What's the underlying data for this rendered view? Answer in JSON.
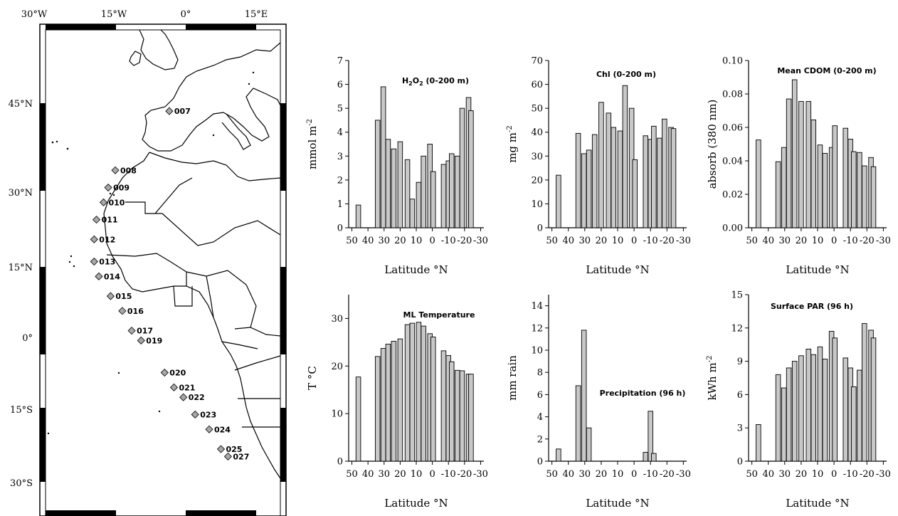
{
  "colors": {
    "bar_fill": "#c8c8c8",
    "bar_stroke": "#000000",
    "station_fill": "#a8a8a8",
    "axis": "#000000"
  },
  "map": {
    "lon_labels": [
      "30°W",
      "15°W",
      "0°",
      "15°E"
    ],
    "lat_labels": [
      "45°N",
      "30°N",
      "15°N",
      "0°",
      "15°S",
      "30°S"
    ],
    "stations": [
      {
        "id": "007",
        "lon": -3.5,
        "lat": 46
      },
      {
        "id": "008",
        "lon": -15,
        "lat": 34
      },
      {
        "id": "009",
        "lon": -16.5,
        "lat": 30.5
      },
      {
        "id": "010",
        "lon": -17.5,
        "lat": 27.5
      },
      {
        "id": "011",
        "lon": -19,
        "lat": 24
      },
      {
        "id": "012",
        "lon": -19.5,
        "lat": 20
      },
      {
        "id": "013",
        "lon": -19.5,
        "lat": 15.5
      },
      {
        "id": "014",
        "lon": -18.5,
        "lat": 12.5
      },
      {
        "id": "015",
        "lon": -16,
        "lat": 8.5
      },
      {
        "id": "016",
        "lon": -13.5,
        "lat": 5.5
      },
      {
        "id": "017",
        "lon": -11.5,
        "lat": 1.5
      },
      {
        "id": "019",
        "lon": -9.5,
        "lat": -0.5
      },
      {
        "id": "020",
        "lon": -4.5,
        "lat": -7
      },
      {
        "id": "021",
        "lon": -2.5,
        "lat": -10
      },
      {
        "id": "022",
        "lon": -0.5,
        "lat": -12
      },
      {
        "id": "023",
        "lon": 2,
        "lat": -15.5
      },
      {
        "id": "024",
        "lon": 5,
        "lat": -18.5
      },
      {
        "id": "025",
        "lon": 7.5,
        "lat": -22.5
      },
      {
        "id": "027",
        "lon": 9,
        "lat": -24
      }
    ]
  },
  "chart_data": [
    {
      "type": "bar",
      "title_main": "H",
      "title_sub": "2",
      "title_mid": "O",
      "title_sub2": "2",
      "title_rest": " (0-200 m)",
      "ylabel_main": "mmol m",
      "ylabel_sup": "-2",
      "xlabel": "Latitude °N",
      "x_ticks": [
        "50",
        "40",
        "30",
        "20",
        "10",
        "0",
        "-10",
        "-20",
        "-30"
      ],
      "y_ticks": [
        "0",
        "1",
        "2",
        "3",
        "4",
        "5",
        "6",
        "7"
      ],
      "ylim": [
        0,
        7
      ],
      "xlim": [
        52,
        -32
      ],
      "x": [
        46,
        34,
        30.5,
        27.5,
        24,
        20,
        15.5,
        12.5,
        8.5,
        5.5,
        1.5,
        -0.5,
        -7,
        -10,
        -12,
        -15.5,
        -18.5,
        -22.5,
        -24
      ],
      "values": [
        0.95,
        4.5,
        5.9,
        3.7,
        3.3,
        3.6,
        2.85,
        1.2,
        1.9,
        3.0,
        3.5,
        2.35,
        2.65,
        2.8,
        3.1,
        3.0,
        5.0,
        5.45,
        4.9
      ]
    },
    {
      "type": "bar",
      "title": "Chl (0-200 m)",
      "ylabel_main": "mg m",
      "ylabel_sup": "-2",
      "xlabel": "Latitude °N",
      "x_ticks": [
        "50",
        "40",
        "30",
        "20",
        "10",
        "0",
        "-10",
        "-20",
        "-30"
      ],
      "y_ticks": [
        "0",
        "10",
        "20",
        "30",
        "40",
        "50",
        "60",
        "70"
      ],
      "ylim": [
        0,
        70
      ],
      "xlim": [
        52,
        -32
      ],
      "x": [
        46,
        34,
        30.5,
        27.5,
        24,
        20,
        15.5,
        12.5,
        8.5,
        5.5,
        1.5,
        -0.5,
        -7,
        -10,
        -12,
        -15.5,
        -18.5,
        -22.5,
        -24
      ],
      "values": [
        22,
        39.5,
        31,
        32.5,
        39,
        52.5,
        48,
        42,
        40.5,
        59.5,
        50,
        28.5,
        38.5,
        37,
        42.5,
        37.5,
        45.5,
        42,
        41.5
      ]
    },
    {
      "type": "bar",
      "title": "Mean CDOM (0-200 m)",
      "ylabel_main": "absorb (380 nm)",
      "ylabel_sup": "",
      "xlabel": "Latitude °N",
      "x_ticks": [
        "50",
        "40",
        "30",
        "20",
        "10",
        "0",
        "-10",
        "-20",
        "-30"
      ],
      "y_ticks": [
        "0.00",
        "0.02",
        "0.04",
        "0.06",
        "0.08",
        "0.10"
      ],
      "ylim": [
        0,
        0.1
      ],
      "xlim": [
        52,
        -32
      ],
      "x": [
        46,
        34,
        30.5,
        27.5,
        24,
        20,
        15.5,
        12.5,
        8.5,
        5.5,
        1.5,
        -0.5,
        -7,
        -10,
        -12,
        -15.5,
        -18.5,
        -22.5,
        -24
      ],
      "values": [
        0.0525,
        0.0395,
        0.048,
        0.077,
        0.0885,
        0.0755,
        0.0755,
        0.0645,
        0.0495,
        0.0445,
        0.048,
        0.061,
        0.0595,
        0.053,
        0.0455,
        0.045,
        0.037,
        0.042,
        0.0365
      ]
    },
    {
      "type": "bar",
      "title": "ML Temperature",
      "ylabel_main": "T °C",
      "ylabel_sup": "",
      "xlabel": "Latitude °N",
      "x_ticks": [
        "50",
        "40",
        "30",
        "20",
        "10",
        "0",
        "-10",
        "-20",
        "-30"
      ],
      "y_ticks": [
        "0",
        "10",
        "20",
        "30"
      ],
      "ylim": [
        0,
        35
      ],
      "xlim": [
        52,
        -32
      ],
      "x": [
        46,
        34,
        30.5,
        27.5,
        24,
        20,
        15.5,
        12.5,
        8.5,
        5.5,
        1.5,
        -0.5,
        -7,
        -10,
        -12,
        -15.5,
        -18.5,
        -22.5,
        -24
      ],
      "values": [
        17.7,
        22,
        23.7,
        24.6,
        25.2,
        25.7,
        28.7,
        29,
        29.2,
        28.4,
        26.8,
        26.1,
        23.2,
        22.2,
        20.9,
        19.1,
        19,
        18.3,
        18.3
      ]
    },
    {
      "type": "bar",
      "title": "Precipitation (96 h)",
      "ylabel_main": "mm rain",
      "ylabel_sup": "",
      "xlabel": "Latitude °N",
      "x_ticks": [
        "50",
        "40",
        "30",
        "20",
        "10",
        "0",
        "-10",
        "-20",
        "-30"
      ],
      "y_ticks": [
        "0",
        "2",
        "4",
        "6",
        "8",
        "10",
        "12",
        "14"
      ],
      "ylim": [
        0,
        15
      ],
      "xlim": [
        52,
        -32
      ],
      "x": [
        46,
        34,
        30.5,
        27.5,
        24,
        20,
        15.5,
        12.5,
        8.5,
        5.5,
        1.5,
        -0.5,
        -7,
        -10,
        -12,
        -15.5,
        -18.5,
        -22.5,
        -24
      ],
      "values": [
        1.1,
        6.8,
        11.8,
        3.0,
        0,
        0,
        0,
        0,
        0,
        0,
        0,
        0,
        0.8,
        4.5,
        0.7,
        0,
        0,
        0,
        0
      ]
    },
    {
      "type": "bar",
      "title": "Surface PAR (96 h)",
      "ylabel_main": "kWh m",
      "ylabel_sup": "-2",
      "xlabel": "Latitude °N",
      "x_ticks": [
        "50",
        "40",
        "30",
        "20",
        "10",
        "0",
        "-10",
        "-20",
        "-30"
      ],
      "y_ticks": [
        "0",
        "3",
        "6",
        "9",
        "12",
        "15"
      ],
      "ylim": [
        0,
        15
      ],
      "xlim": [
        52,
        -32
      ],
      "x": [
        46,
        34,
        30.5,
        27.5,
        24,
        20,
        15.5,
        12.5,
        8.5,
        5.5,
        1.5,
        -0.5,
        -7,
        -10,
        -12,
        -15.5,
        -18.5,
        -22.5,
        -24
      ],
      "values": [
        3.3,
        7.8,
        6.6,
        8.4,
        9.0,
        9.5,
        10.1,
        9.6,
        10.3,
        9.2,
        11.7,
        11.1,
        9.3,
        8.4,
        6.7,
        8.2,
        12.4,
        11.8,
        11.1
      ]
    }
  ]
}
